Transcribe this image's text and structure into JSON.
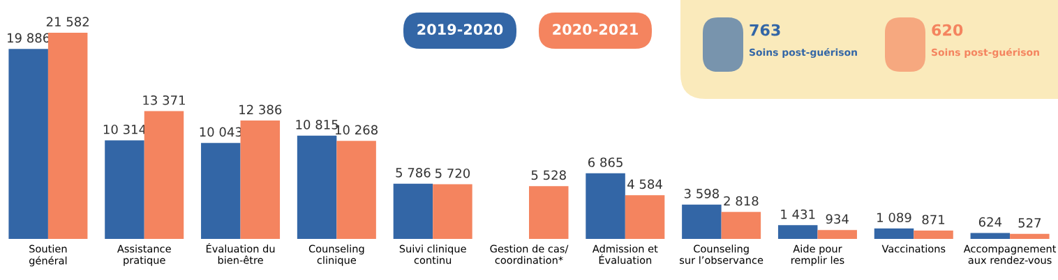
{
  "chart_data": {
    "type": "bar",
    "categories": [
      "Soutien\ngénéral",
      "Assistance\npratique",
      "Évaluation du\nbien-être",
      "Counseling\nclinique",
      "Suivi clinique\ncontinu",
      "Gestion de cas/\ncoordination*",
      "Admission et\nÉvaluation",
      "Counseling\nsur l’observance",
      "Aide pour\nremplir les",
      "Vaccinations",
      "Accompagnement\naux rendez-vous"
    ],
    "series": [
      {
        "name": "2019-2020",
        "color": "#3366a6",
        "values": [
          19886,
          10314,
          10043,
          10815,
          5786,
          null,
          6865,
          3598,
          1431,
          1089,
          624
        ],
        "value_labels": [
          "19 886",
          "10 314",
          "10 043",
          "10 815",
          "5 786",
          null,
          "6 865",
          "3 598",
          "1 431",
          "1 089",
          "624"
        ]
      },
      {
        "name": "2020-2021",
        "color": "#f4845f",
        "values": [
          21582,
          13371,
          12386,
          10268,
          5720,
          5528,
          4584,
          2818,
          934,
          871,
          527
        ],
        "value_labels": [
          "21 582",
          "13 371",
          "12 386",
          "10 268",
          "5 720",
          "5 528",
          "4 584",
          "2 818",
          "934",
          "871",
          "527"
        ]
      }
    ],
    "tick_labels": "x",
    "legend": "top",
    "annotations": [
      "763",
      "Soins post-guérison",
      "620",
      "Soins post-guérison"
    ]
  }
}
